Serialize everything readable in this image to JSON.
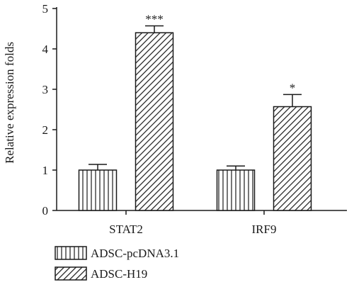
{
  "chart_data": {
    "type": "bar",
    "title": "",
    "xlabel": "",
    "ylabel": "Relative expression folds",
    "ylim": [
      0,
      5
    ],
    "yticks": [
      0,
      1,
      2,
      3,
      4,
      5
    ],
    "categories": [
      "STAT2",
      "IRF9"
    ],
    "series": [
      {
        "name": "ADSC-pcDNA3.1",
        "values": [
          1.0,
          1.0
        ],
        "errors": [
          0.14,
          0.1
        ],
        "pattern": "vertical-lines",
        "annotations": [
          "",
          ""
        ]
      },
      {
        "name": "ADSC-H19",
        "values": [
          4.4,
          2.57
        ],
        "errors": [
          0.17,
          0.3
        ],
        "pattern": "diagonal-lines",
        "annotations": [
          "***",
          "*"
        ]
      }
    ],
    "legend_position": "bottom-left",
    "grid": false
  }
}
